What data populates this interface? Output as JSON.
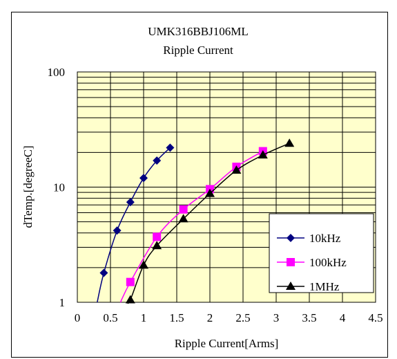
{
  "chart_data": {
    "type": "line",
    "title": "UMK316BBJ106ML",
    "subtitle": "Ripple Current",
    "xlabel": "Ripple Current[Arms]",
    "ylabel": "dTemp.[degreeC]",
    "xlim": [
      0,
      4.5
    ],
    "ylim": [
      1,
      100
    ],
    "yscale": "log",
    "grid": true,
    "legend_position": "bottom-right",
    "plot_background": "#ffffcc",
    "x_ticks": [
      "0",
      "0.5",
      "1",
      "1.5",
      "2",
      "2.5",
      "3",
      "3.5",
      "4",
      "4.5"
    ],
    "y_ticks": [
      "1",
      "10",
      "100"
    ],
    "series": [
      {
        "name": "10kHz",
        "color": "#000080",
        "marker": "diamond",
        "x": [
          0.4,
          0.6,
          0.8,
          1.0,
          1.2,
          1.4
        ],
        "y": [
          1.8,
          4.2,
          7.4,
          12,
          17,
          22
        ],
        "curve_start": [
          0.3,
          1.0
        ]
      },
      {
        "name": "100kHz",
        "color": "#ff00ff",
        "marker": "square",
        "x": [
          0.8,
          1.2,
          1.6,
          2.0,
          2.4,
          2.8
        ],
        "y": [
          1.5,
          3.7,
          6.4,
          9.6,
          15,
          20.5
        ],
        "curve_start": [
          0.65,
          1.0
        ]
      },
      {
        "name": "1MHz",
        "color": "#000000",
        "marker": "triangle",
        "x": [
          0.8,
          1.0,
          1.2,
          1.6,
          2.0,
          2.4,
          2.8,
          3.2
        ],
        "y": [
          1.05,
          2.1,
          3.1,
          5.3,
          8.8,
          14,
          19,
          24
        ],
        "curve_start": [
          0.75,
          1.0
        ]
      }
    ]
  }
}
